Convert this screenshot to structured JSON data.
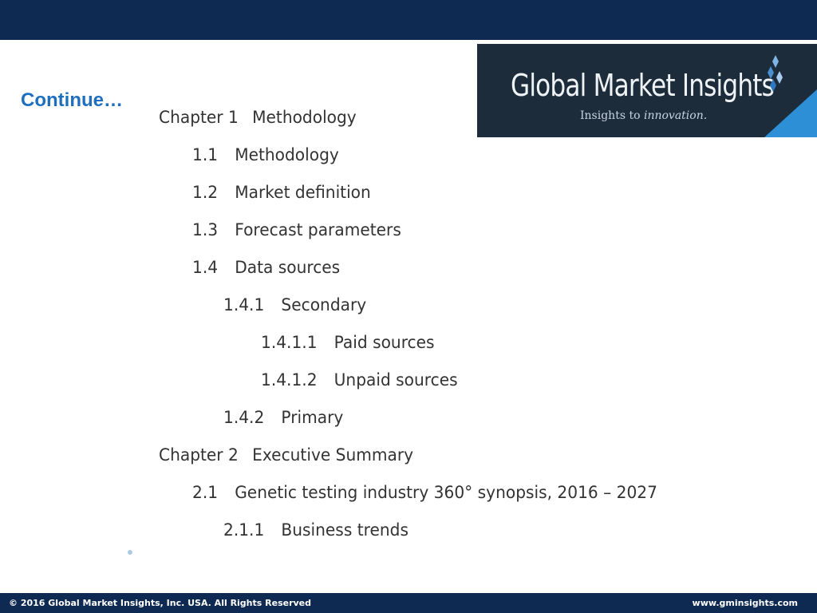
{
  "header": {
    "heading": "Continue…"
  },
  "logo": {
    "name": "Global Market Insights",
    "tagline_prefix": "Insights to",
    "tagline_emphasis": "innovation."
  },
  "toc": [
    {
      "number": "Chapter 1",
      "title": "Methodology",
      "level": 0
    },
    {
      "number": "1.1",
      "title": "Methodology",
      "level": 1
    },
    {
      "number": "1.2",
      "title": "Market definition",
      "level": 1
    },
    {
      "number": "1.3",
      "title": "Forecast parameters",
      "level": 1
    },
    {
      "number": "1.4",
      "title": "Data sources",
      "level": 1
    },
    {
      "number": "1.4.1",
      "title": "Secondary",
      "level": 2
    },
    {
      "number": "1.4.1.1",
      "title": "Paid sources",
      "level": 3
    },
    {
      "number": "1.4.1.2",
      "title": "Unpaid sources",
      "level": 3
    },
    {
      "number": "1.4.2",
      "title": "Primary",
      "level": 2
    },
    {
      "number": "Chapter 2",
      "title": "Executive Summary",
      "level": 0
    },
    {
      "number": "2.1",
      "title": "Genetic testing industry 360° synopsis, 2016 – 2027",
      "level": 1
    },
    {
      "number": "2.1.1",
      "title": "Business trends",
      "level": 2
    }
  ],
  "footer": {
    "copyright": "© 2016 Global Market Insights, Inc. USA.  All Rights Reserved",
    "website": "www.gminsights.com"
  },
  "colors": {
    "banner": "#0f2a52",
    "heading": "#1f6fbf",
    "logo_background": "#1c2c3b",
    "logo_accent": "#2d8fd6",
    "body_text": "#333333"
  }
}
